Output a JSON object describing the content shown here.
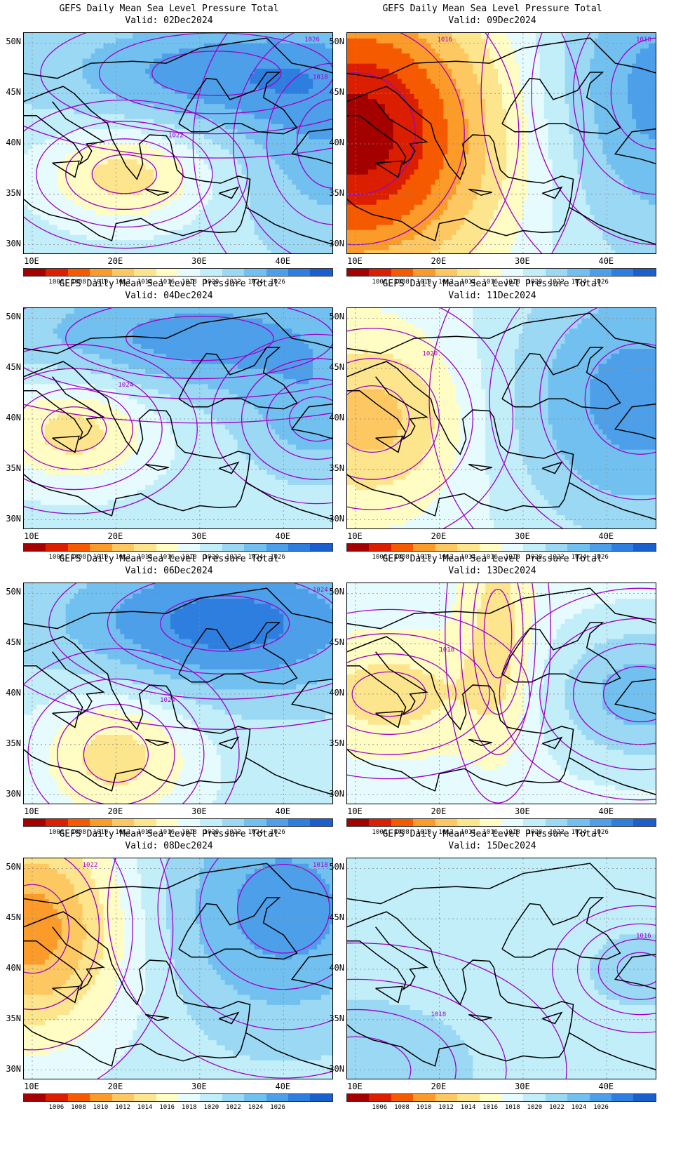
{
  "title_line1": "GEFS Daily Mean Sea Level Pressure Total",
  "x_ticks": [
    "10E",
    "20E",
    "30E",
    "40E"
  ],
  "y_ticks": [
    "50N",
    "45N",
    "40N",
    "35N",
    "30N"
  ],
  "colorbar": {
    "colors": [
      "#a50000",
      "#dc1e00",
      "#f55a00",
      "#fb9b2a",
      "#fdc862",
      "#fde58d",
      "#fffcc4",
      "#e6fbfe",
      "#c2eefa",
      "#9ad8f4",
      "#71c0f0",
      "#4d9fe9",
      "#2e7ee0",
      "#1b5fce"
    ],
    "labels": [
      "1006",
      "1008",
      "1010",
      "1012",
      "1014",
      "1016",
      "1018",
      "1020",
      "1022",
      "1024",
      "1026"
    ]
  },
  "panels": [
    {
      "valid": "Valid: 02Dec2024",
      "contour_labels": [
        "1022",
        "1026",
        "1018"
      ],
      "base_level": 8,
      "features": [
        {
          "lon": 21,
          "lat": 37,
          "rx": 7,
          "ry": 3.5,
          "d": -3
        },
        {
          "lon": 32,
          "lat": 47,
          "rx": 14,
          "ry": 4,
          "d": 3
        },
        {
          "lon": 46,
          "lat": 40,
          "rx": 8,
          "ry": 8,
          "d": 2
        }
      ]
    },
    {
      "valid": "Valid: 09Dec2024",
      "contour_labels": [
        "1016",
        "1018"
      ],
      "base_level": 8,
      "features": [
        {
          "lon": 10,
          "lat": 41,
          "rx": 13,
          "ry": 11,
          "d": -8
        },
        {
          "lon": 46,
          "lat": 45,
          "rx": 10,
          "ry": 10,
          "d": 3
        }
      ]
    },
    {
      "valid": "Valid: 04Dec2024",
      "contour_labels": [
        "1024"
      ],
      "base_level": 8,
      "features": [
        {
          "lon": 15,
          "lat": 39,
          "rx": 7,
          "ry": 4,
          "d": -3
        },
        {
          "lon": 30,
          "lat": 48,
          "rx": 16,
          "ry": 4,
          "d": 3
        },
        {
          "lon": 44,
          "lat": 40,
          "rx": 6,
          "ry": 4,
          "d": 2
        }
      ]
    },
    {
      "valid": "Valid: 11Dec2024",
      "contour_labels": [
        "1020"
      ],
      "base_level": 7,
      "features": [
        {
          "lon": 12,
          "lat": 40,
          "rx": 8,
          "ry": 6,
          "d": -3
        },
        {
          "lon": 44,
          "lat": 42,
          "rx": 12,
          "ry": 10,
          "d": 4
        }
      ]
    },
    {
      "valid": "Valid: 06Dec2024",
      "contour_labels": [
        "1024",
        "1024"
      ],
      "base_level": 8,
      "features": [
        {
          "lon": 20,
          "lat": 34,
          "rx": 7,
          "ry": 5,
          "d": -3
        },
        {
          "lon": 33,
          "lat": 47,
          "rx": 14,
          "ry": 5,
          "d": 4
        }
      ]
    },
    {
      "valid": "Valid: 13Dec2024",
      "contour_labels": [
        "1018"
      ],
      "base_level": 7,
      "features": [
        {
          "lon": 14,
          "lat": 40,
          "rx": 8,
          "ry": 4,
          "d": -2
        },
        {
          "lon": 27,
          "lat": 46,
          "rx": 3,
          "ry": 8,
          "d": -2
        },
        {
          "lon": 44,
          "lat": 40,
          "rx": 8,
          "ry": 5,
          "d": 3
        }
      ]
    },
    {
      "valid": "Valid: 08Dec2024",
      "contour_labels": [
        "1022",
        "1018"
      ],
      "base_level": 8,
      "features": [
        {
          "lon": 10,
          "lat": 44,
          "rx": 8,
          "ry": 8,
          "d": -5
        },
        {
          "lon": 40,
          "lat": 46,
          "rx": 10,
          "ry": 8,
          "d": 3
        }
      ]
    },
    {
      "valid": "Valid: 15Dec2024",
      "contour_labels": [
        "1016",
        "1018"
      ],
      "base_level": 8,
      "features": [
        {
          "lon": 44,
          "lat": 40,
          "rx": 5,
          "ry": 3,
          "d": 1
        },
        {
          "lon": 10,
          "lat": 30,
          "rx": 12,
          "ry": 6,
          "d": 1
        }
      ]
    }
  ]
}
